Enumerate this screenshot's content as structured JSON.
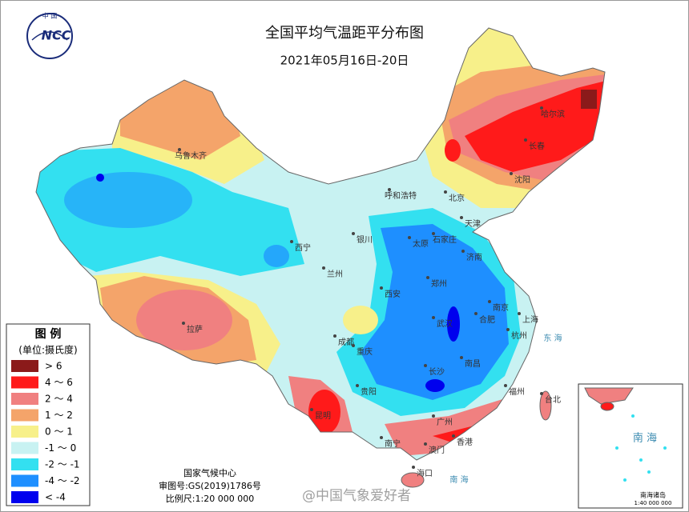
{
  "header": {
    "logo_top": "中 国",
    "logo_text": "NCC",
    "title": "全国平均气温距平分布图",
    "subtitle": "2021年05月16日-20日"
  },
  "legend": {
    "title": "图 例",
    "unit": "(单位:摄氏度)",
    "items": [
      {
        "label": "> 6",
        "color": "#8b1a1a"
      },
      {
        "label": "4 ～ 6",
        "color": "#ff1a1a"
      },
      {
        "label": "2 ～ 4",
        "color": "#f08080"
      },
      {
        "label": "1 ～ 2",
        "color": "#f4a46a"
      },
      {
        "label": "0 ～ 1",
        "color": "#f7f08a"
      },
      {
        "label": "-1 ～ 0",
        "color": "#c8f2f2"
      },
      {
        "label": "-2 ～ -1",
        "color": "#33e0f0"
      },
      {
        "label": "-4 ～ -2",
        "color": "#1e8fff"
      },
      {
        "label": "< -4",
        "color": "#0000ee"
      }
    ]
  },
  "cities": [
    "乌鲁木齐",
    "哈尔滨",
    "长春",
    "沈阳",
    "呼和浩特",
    "北京",
    "天津",
    "石家庄",
    "太原",
    "济南",
    "银川",
    "西宁",
    "兰州",
    "郑州",
    "西安",
    "南京",
    "合肥",
    "上海",
    "武汉",
    "杭州",
    "成都",
    "重庆",
    "南昌",
    "长沙",
    "贵阳",
    "福州",
    "台北",
    "拉萨",
    "昆明",
    "南宁",
    "广州",
    "澳门",
    "香港",
    "海口"
  ],
  "seas": [
    "东 海",
    "南 海"
  ],
  "footer": {
    "org": "国家气候中心",
    "approval": "审图号:GS(2019)1786号",
    "scale": "比例尺:1:20 000 000"
  },
  "inset": {
    "label": "南 海",
    "title": "南海诸岛",
    "scale": "1:40 000 000"
  },
  "watermark": "@中国气象爱好者"
}
